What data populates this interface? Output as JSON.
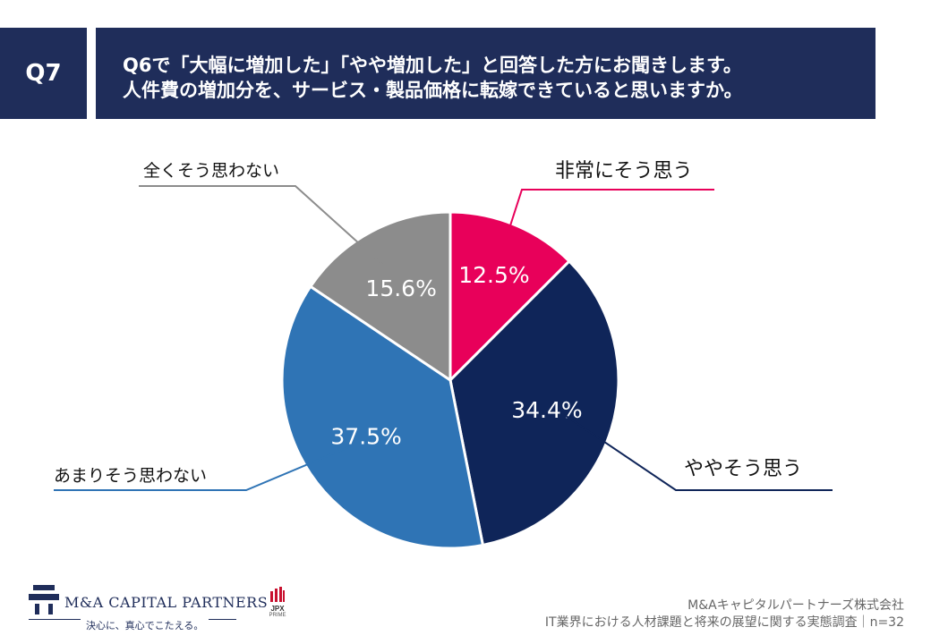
{
  "header": {
    "question_label": "Q7",
    "title_line1": "Q6で「大幅に増加した」「やや増加した」と回答した方にお聞きします。",
    "title_line2": "人件費の増加分を、サービス・製品価格に転嫁できていると思いますか。"
  },
  "chart_data": {
    "type": "pie",
    "title": "人件費の増加分を、サービス・製品価格に転嫁できていると思いますか。",
    "slices": [
      {
        "label": "非常にそう思う",
        "value": 12.5,
        "value_label": "12.5%",
        "color": "#e8005a"
      },
      {
        "label": "ややそう思う",
        "value": 34.4,
        "value_label": "34.4%",
        "color": "#0f2559"
      },
      {
        "label": "あまりそう思わない",
        "value": 37.5,
        "value_label": "37.5%",
        "color": "#2f74b5"
      },
      {
        "label": "全くそう思わない",
        "value": 15.6,
        "value_label": "15.6%",
        "color": "#8c8c8c"
      }
    ],
    "start": "12 o'clock, clockwise"
  },
  "logo": {
    "name": "M&A CAPITAL PARTNERS",
    "tagline": "決心に、真心でこたえる。",
    "brand_color": "#1f2d5a"
  },
  "badge": {
    "top": "JPX",
    "bottom": "PRIME",
    "accent_color": "#c8102e"
  },
  "footer": {
    "company": "M&Aキャピタルパートナーズ株式会社",
    "survey": "IT業界における人材課題と将来の展望に関する実態調査｜n=32"
  }
}
